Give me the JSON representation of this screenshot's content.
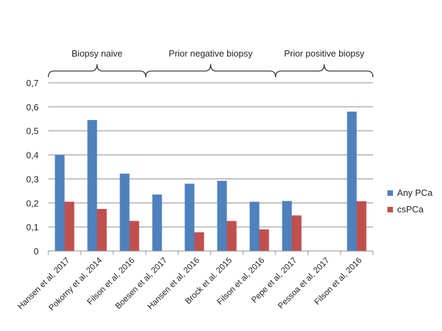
{
  "chart_data": {
    "type": "bar",
    "title": "",
    "xlabel": "",
    "ylabel": "",
    "ylim": [
      0,
      0.7
    ],
    "ytick_step": 0.1,
    "ytick_labels": [
      "0",
      "0,1",
      "0,2",
      "0,3",
      "0,4",
      "0,5",
      "0,6",
      "0,7"
    ],
    "grid": true,
    "legend_position": "right",
    "categories": [
      "Hansen et al, 2017",
      "Pokorny et al, 2014",
      "Filson et al, 2016",
      "Boesen et al, 2017",
      "Hansen et al, 2016",
      "Brock et al. 2015",
      "Filson et al, 2016",
      "Pepe et al, 2017",
      "Pessoa et al, 2017",
      "Filson et al, 2016"
    ],
    "series": [
      {
        "name": "Any PCa",
        "color": "#4F81BD",
        "values": [
          0.4,
          0.545,
          0.322,
          0.235,
          0.28,
          0.292,
          0.205,
          0.208,
          null,
          0.58
        ]
      },
      {
        "name": "csPCa",
        "color": "#C0504D",
        "values": [
          0.205,
          0.175,
          0.125,
          null,
          0.078,
          0.125,
          0.09,
          0.148,
          null,
          0.207
        ]
      }
    ],
    "groups": [
      {
        "label": "Biopsy naive",
        "from": 0,
        "to": 2
      },
      {
        "label": "Prior negative biopsy",
        "from": 3,
        "to": 6
      },
      {
        "label": "Prior positive biopsy",
        "from": 7,
        "to": 9
      }
    ]
  }
}
